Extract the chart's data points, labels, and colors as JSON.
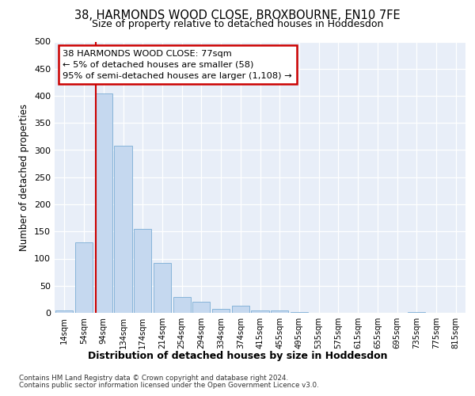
{
  "title_line1": "38, HARMONDS WOOD CLOSE, BROXBOURNE, EN10 7FE",
  "title_line2": "Size of property relative to detached houses in Hoddesdon",
  "xlabel": "Distribution of detached houses by size in Hoddesdon",
  "ylabel": "Number of detached properties",
  "bar_labels": [
    "14sqm",
    "54sqm",
    "94sqm",
    "134sqm",
    "174sqm",
    "214sqm",
    "254sqm",
    "294sqm",
    "334sqm",
    "374sqm",
    "415sqm",
    "455sqm",
    "495sqm",
    "535sqm",
    "575sqm",
    "615sqm",
    "655sqm",
    "695sqm",
    "735sqm",
    "775sqm",
    "815sqm"
  ],
  "bar_values": [
    5,
    130,
    405,
    308,
    155,
    92,
    29,
    20,
    8,
    13,
    5,
    5,
    2,
    0,
    0,
    0,
    0,
    0,
    1,
    0,
    0
  ],
  "bar_color": "#c5d8ef",
  "bar_edgecolor": "#7aadd4",
  "vline_x": 1.6,
  "vline_color": "#cc0000",
  "annotation_text": "38 HARMONDS WOOD CLOSE: 77sqm\n← 5% of detached houses are smaller (58)\n95% of semi-detached houses are larger (1,108) →",
  "annotation_box_color": "#ffffff",
  "annotation_box_edgecolor": "#cc0000",
  "ylim": [
    0,
    500
  ],
  "yticks": [
    0,
    50,
    100,
    150,
    200,
    250,
    300,
    350,
    400,
    450,
    500
  ],
  "footnote1": "Contains HM Land Registry data © Crown copyright and database right 2024.",
  "footnote2": "Contains public sector information licensed under the Open Government Licence v3.0.",
  "bg_color": "#ffffff",
  "plot_bg_color": "#e8eef8"
}
